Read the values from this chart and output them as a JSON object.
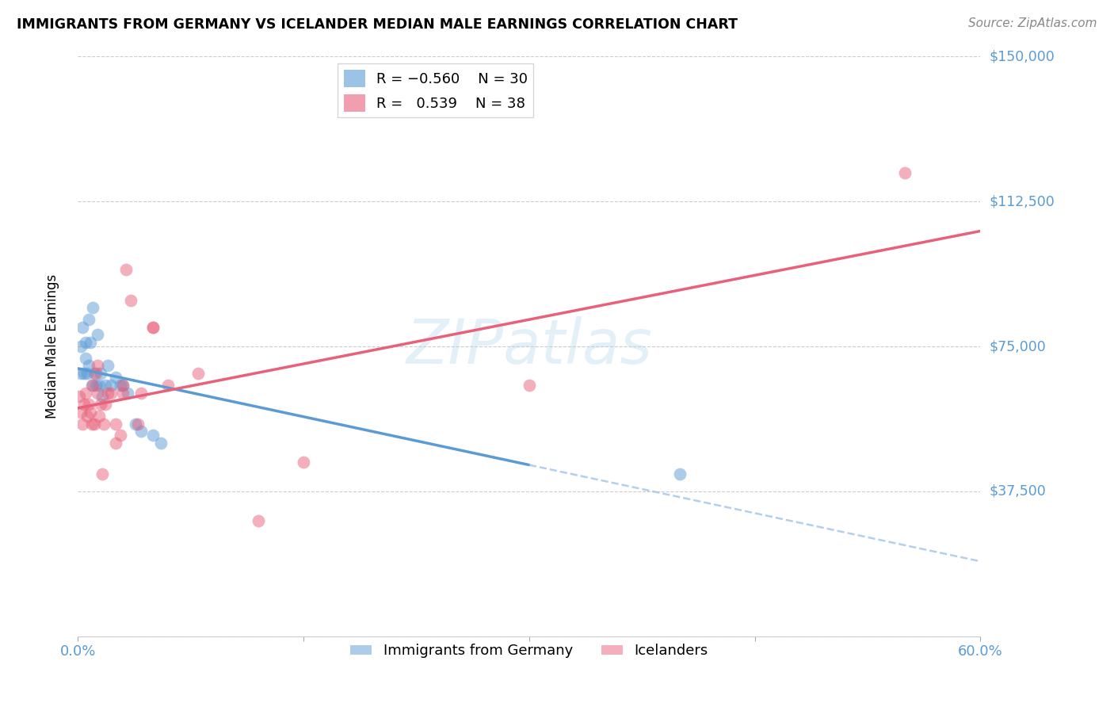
{
  "title": "IMMIGRANTS FROM GERMANY VS ICELANDER MEDIAN MALE EARNINGS CORRELATION CHART",
  "source": "Source: ZipAtlas.com",
  "ylabel": "Median Male Earnings",
  "x_min": 0.0,
  "x_max": 0.6,
  "y_min": 0,
  "y_max": 150000,
  "blue_color": "#5b9bd5",
  "pink_color": "#e8607a",
  "dashed_color": "#a0c4e8",
  "watermark": "ZIPatlas",
  "background_color": "#ffffff",
  "grid_color": "#cccccc",
  "blue_scatter_x": [
    0.002,
    0.002,
    0.003,
    0.004,
    0.005,
    0.005,
    0.006,
    0.007,
    0.007,
    0.008,
    0.009,
    0.01,
    0.011,
    0.012,
    0.013,
    0.014,
    0.015,
    0.016,
    0.018,
    0.02,
    0.022,
    0.025,
    0.028,
    0.03,
    0.033,
    0.038,
    0.042,
    0.05,
    0.055,
    0.4
  ],
  "blue_scatter_y": [
    75000,
    68000,
    80000,
    68000,
    72000,
    76000,
    68000,
    70000,
    82000,
    76000,
    65000,
    85000,
    68000,
    65000,
    78000,
    65000,
    68000,
    62000,
    65000,
    70000,
    65000,
    67000,
    65000,
    65000,
    63000,
    55000,
    53000,
    52000,
    50000,
    42000
  ],
  "pink_scatter_x": [
    0.001,
    0.002,
    0.003,
    0.004,
    0.005,
    0.006,
    0.007,
    0.008,
    0.009,
    0.01,
    0.011,
    0.012,
    0.013,
    0.013,
    0.014,
    0.015,
    0.016,
    0.017,
    0.018,
    0.02,
    0.022,
    0.025,
    0.025,
    0.028,
    0.03,
    0.03,
    0.032,
    0.035,
    0.04,
    0.042,
    0.05,
    0.05,
    0.06,
    0.08,
    0.12,
    0.15,
    0.3,
    0.55
  ],
  "pink_scatter_y": [
    62000,
    58000,
    55000,
    60000,
    63000,
    57000,
    60000,
    58000,
    55000,
    65000,
    55000,
    68000,
    70000,
    63000,
    57000,
    60000,
    42000,
    55000,
    60000,
    63000,
    63000,
    50000,
    55000,
    52000,
    63000,
    65000,
    95000,
    87000,
    55000,
    63000,
    80000,
    80000,
    65000,
    68000,
    30000,
    45000,
    65000,
    120000
  ],
  "blue_line_x0": 0.0,
  "blue_line_x_solid_end": 0.3,
  "blue_line_x_dash_end": 0.6,
  "pink_line_x0": 0.0,
  "pink_line_x_end": 0.6
}
